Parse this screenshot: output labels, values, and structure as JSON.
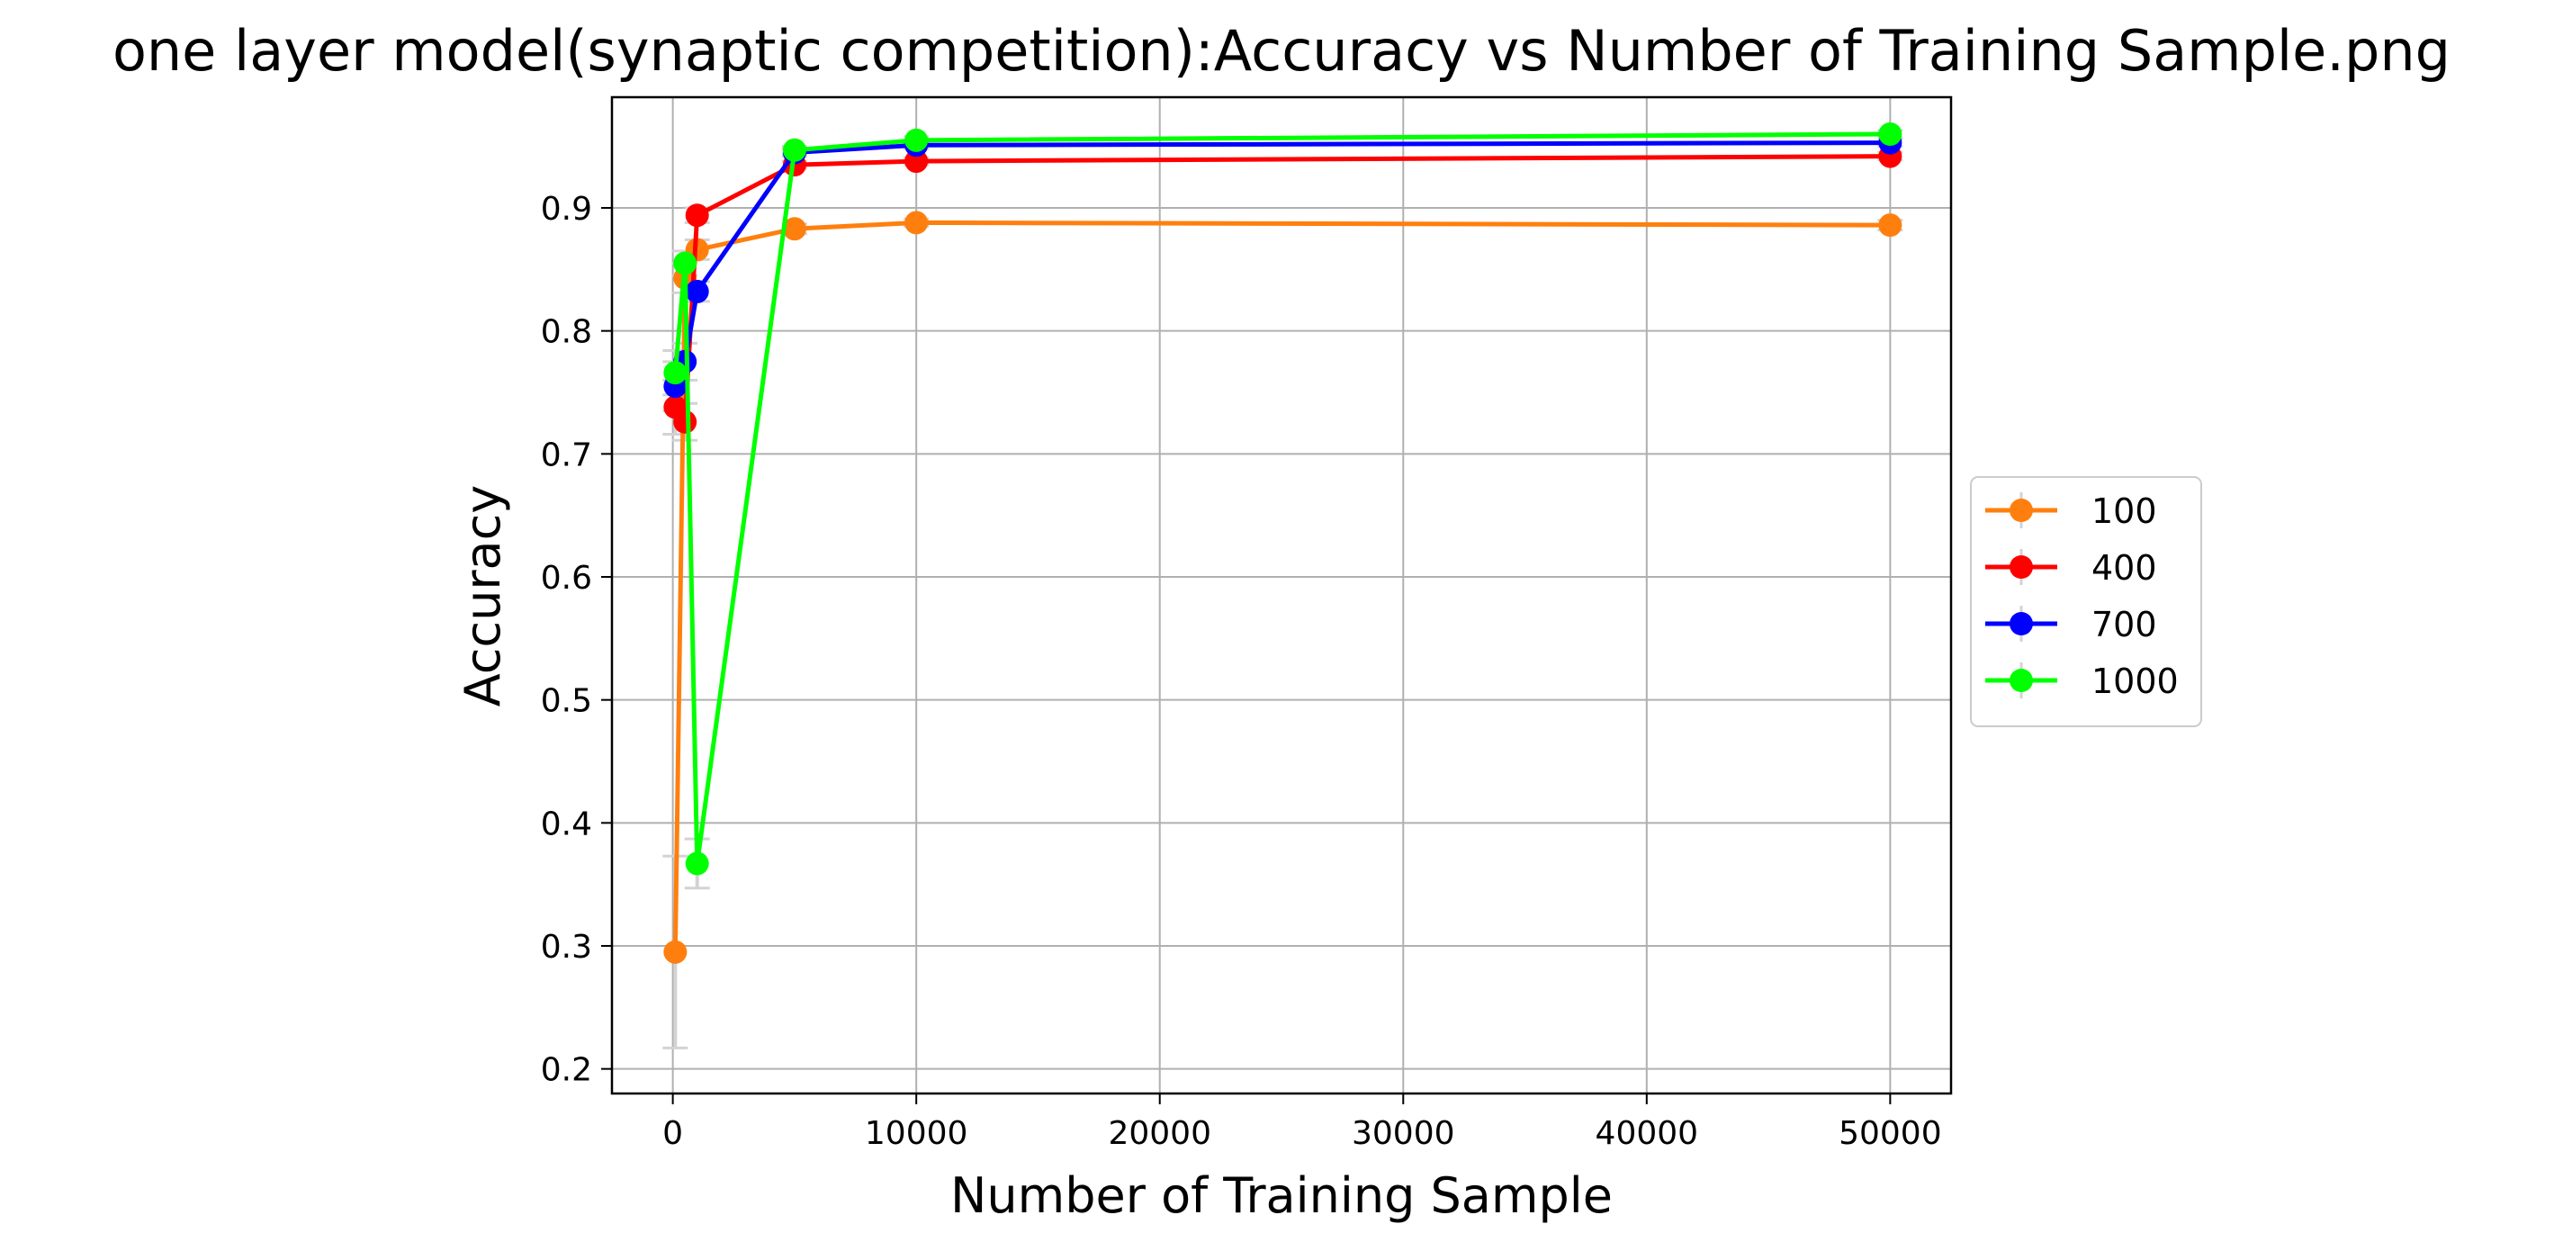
{
  "chart_data": {
    "type": "line",
    "title": "one layer model(synaptic competition):Accuracy vs Number of Training Sample.png",
    "xlabel": "Number of Training Sample",
    "ylabel": "Accuracy",
    "xlim": [
      -2500,
      52500
    ],
    "ylim": [
      0.18,
      0.99
    ],
    "x_ticks": [
      0,
      10000,
      20000,
      30000,
      40000,
      50000
    ],
    "y_ticks": [
      0.2,
      0.3,
      0.4,
      0.5,
      0.6,
      0.7,
      0.8,
      0.9
    ],
    "grid": true,
    "legend_position": "right",
    "errorbar_color": "#d3d3d3",
    "x": [
      100,
      500,
      1000,
      5000,
      10000,
      50000
    ],
    "series": [
      {
        "name": "100",
        "color": "#ff7f0e",
        "values": [
          0.295,
          0.843,
          0.866,
          0.883,
          0.888,
          0.886
        ],
        "errors": [
          0.078,
          0.012,
          0.008,
          0.004,
          0.003,
          0.004
        ]
      },
      {
        "name": "400",
        "color": "#ff0000",
        "values": [
          0.738,
          0.726,
          0.894,
          0.935,
          0.938,
          0.942
        ],
        "errors": [
          0.022,
          0.015,
          0.006,
          0.003,
          0.003,
          0.003
        ]
      },
      {
        "name": "700",
        "color": "#0000ff",
        "values": [
          0.755,
          0.775,
          0.832,
          0.945,
          0.951,
          0.953
        ],
        "errors": [
          0.02,
          0.015,
          0.008,
          0.003,
          0.003,
          0.003
        ]
      },
      {
        "name": "1000",
        "color": "#00ff00",
        "values": [
          0.766,
          0.855,
          0.367,
          0.947,
          0.955,
          0.96
        ],
        "errors": [
          0.018,
          0.01,
          0.02,
          0.003,
          0.003,
          0.003
        ]
      }
    ]
  }
}
